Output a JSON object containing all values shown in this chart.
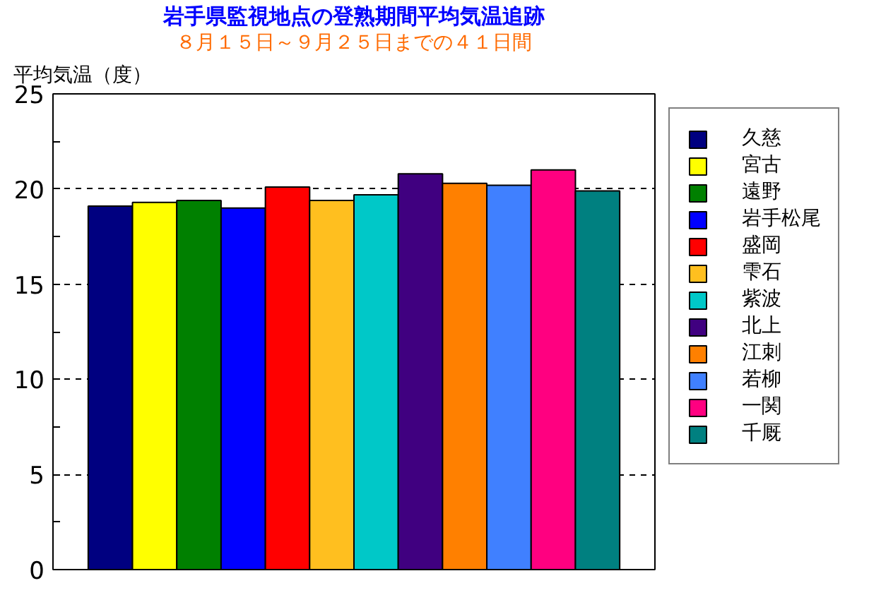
{
  "chart_data": {
    "type": "bar",
    "title": "岩手県監視地点の登熟期間平均気温追跡",
    "subtitle": "８月１５日～９月２５日までの４１日間",
    "ylabel": "平均気温（度）",
    "categories": [
      null
    ],
    "series": [
      {
        "name": "久慈",
        "color": "#000080",
        "values": [
          19.1
        ]
      },
      {
        "name": "宮古",
        "color": "#ffff00",
        "values": [
          19.3
        ]
      },
      {
        "name": "遠野",
        "color": "#008000",
        "values": [
          19.4
        ]
      },
      {
        "name": "岩手松尾",
        "color": "#0000ff",
        "values": [
          19.0
        ]
      },
      {
        "name": "盛岡",
        "color": "#ff0000",
        "values": [
          20.1
        ]
      },
      {
        "name": "雫石",
        "color": "#ffbf1f",
        "values": [
          19.4
        ]
      },
      {
        "name": "紫波",
        "color": "#00c8c8",
        "values": [
          19.7
        ]
      },
      {
        "name": "北上",
        "color": "#400080",
        "values": [
          20.8
        ]
      },
      {
        "name": "江刺",
        "color": "#ff8000",
        "values": [
          20.3
        ]
      },
      {
        "name": "若柳",
        "color": "#4080ff",
        "values": [
          20.2
        ]
      },
      {
        "name": "一関",
        "color": "#ff0080",
        "values": [
          21.0
        ]
      },
      {
        "name": "千厩",
        "color": "#008080",
        "values": [
          19.9
        ]
      }
    ],
    "ylim": [
      0,
      25
    ],
    "yticks": [
      0,
      {
        "value": 2.5,
        "label": null
      },
      5,
      {
        "value": 7.5,
        "label": null
      },
      10,
      {
        "value": 12.5,
        "label": null
      },
      15,
      {
        "value": 17.5,
        "label": null
      },
      20,
      {
        "value": 22.5,
        "label": null
      },
      25
    ],
    "grid": "y",
    "legend": "right",
    "tick_labels": "y"
  }
}
